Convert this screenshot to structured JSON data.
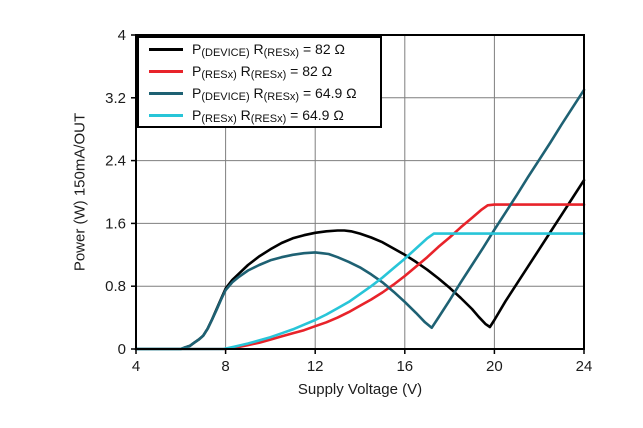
{
  "chart_data": {
    "type": "line",
    "title": "",
    "xlabel": "Supply Voltage (V)",
    "ylabel": "Power (W) 150mA/OUT",
    "xlim": [
      4,
      24
    ],
    "ylim": [
      0,
      4
    ],
    "xticks": [
      4,
      8,
      12,
      16,
      20,
      24
    ],
    "yticks": [
      0,
      0.8,
      1.6,
      2.4,
      3.2,
      4
    ],
    "xtick_labels": [
      "4",
      "8",
      "12",
      "16",
      "20",
      "24"
    ],
    "ytick_labels": [
      "0",
      "0.8",
      "1.6",
      "2.4",
      "3.2",
      "4"
    ],
    "grid": true,
    "grid_color": "#7f7f7f",
    "frame_color": "#000000",
    "text_color": "#1c1c1c",
    "legend_position": "top-left",
    "series": [
      {
        "id": "p-device-82",
        "name": "P(DEVICE) R(RESx) = 82 Ω",
        "color": "#000000",
        "label_parts": [
          {
            "text": "P",
            "sub": false
          },
          {
            "text": "(DEVICE)",
            "sub": true
          },
          {
            "text": " R",
            "sub": false
          },
          {
            "text": "(RESx)",
            "sub": true
          },
          {
            "text": " = 82 Ω",
            "sub": false
          }
        ],
        "points": [
          [
            4,
            0
          ],
          [
            6,
            0
          ],
          [
            6.2,
            0.02
          ],
          [
            6.4,
            0.04
          ],
          [
            6.6,
            0.08
          ],
          [
            6.8,
            0.12
          ],
          [
            7,
            0.17
          ],
          [
            7.2,
            0.26
          ],
          [
            7.4,
            0.38
          ],
          [
            7.6,
            0.51
          ],
          [
            7.8,
            0.64
          ],
          [
            8,
            0.77
          ],
          [
            8.3,
            0.88
          ],
          [
            8.6,
            0.96
          ],
          [
            9,
            1.07
          ],
          [
            9.5,
            1.18
          ],
          [
            10,
            1.27
          ],
          [
            10.5,
            1.35
          ],
          [
            11,
            1.41
          ],
          [
            11.5,
            1.45
          ],
          [
            12,
            1.48
          ],
          [
            12.5,
            1.5
          ],
          [
            13,
            1.51
          ],
          [
            13.3,
            1.51
          ],
          [
            13.6,
            1.5
          ],
          [
            14,
            1.47
          ],
          [
            14.5,
            1.42
          ],
          [
            15,
            1.36
          ],
          [
            15.5,
            1.28
          ],
          [
            16,
            1.2
          ],
          [
            16.5,
            1.11
          ],
          [
            17,
            1.01
          ],
          [
            17.5,
            0.9
          ],
          [
            18,
            0.78
          ],
          [
            18.5,
            0.65
          ],
          [
            19,
            0.51
          ],
          [
            19.3,
            0.41
          ],
          [
            19.6,
            0.32
          ],
          [
            19.8,
            0.28
          ],
          [
            20,
            0.37
          ],
          [
            20.5,
            0.61
          ],
          [
            21,
            0.83
          ],
          [
            21.5,
            1.05
          ],
          [
            22,
            1.27
          ],
          [
            22.5,
            1.49
          ],
          [
            23,
            1.71
          ],
          [
            23.5,
            1.93
          ],
          [
            24,
            2.15
          ]
        ]
      },
      {
        "id": "p-resx-82",
        "name": "P(RESx) R(RESx) = 82 Ω",
        "color": "#e8232a",
        "label_parts": [
          {
            "text": "P",
            "sub": false
          },
          {
            "text": "(RESx)",
            "sub": true
          },
          {
            "text": " R",
            "sub": false
          },
          {
            "text": "(RESx)",
            "sub": true
          },
          {
            "text": " = 82 Ω",
            "sub": false
          }
        ],
        "points": [
          [
            4,
            0
          ],
          [
            8,
            0
          ],
          [
            8.5,
            0.02
          ],
          [
            9,
            0.05
          ],
          [
            9.5,
            0.08
          ],
          [
            10,
            0.12
          ],
          [
            10.5,
            0.16
          ],
          [
            11,
            0.2
          ],
          [
            11.5,
            0.24
          ],
          [
            12,
            0.29
          ],
          [
            12.5,
            0.34
          ],
          [
            13,
            0.4
          ],
          [
            13.5,
            0.47
          ],
          [
            14,
            0.55
          ],
          [
            14.5,
            0.63
          ],
          [
            15,
            0.72
          ],
          [
            15.5,
            0.82
          ],
          [
            16,
            0.93
          ],
          [
            16.5,
            1.05
          ],
          [
            17,
            1.17
          ],
          [
            17.5,
            1.3
          ],
          [
            18,
            1.42
          ],
          [
            18.5,
            1.55
          ],
          [
            19,
            1.67
          ],
          [
            19.4,
            1.77
          ],
          [
            19.7,
            1.83
          ],
          [
            20,
            1.84
          ],
          [
            24,
            1.84
          ]
        ]
      },
      {
        "id": "p-device-64-9",
        "name": "P(DEVICE) R(RESx) = 64.9 Ω",
        "color": "#1e6173",
        "label_parts": [
          {
            "text": "P",
            "sub": false
          },
          {
            "text": "(DEVICE)",
            "sub": true
          },
          {
            "text": " R",
            "sub": false
          },
          {
            "text": "(RESx)",
            "sub": true
          },
          {
            "text": " = 64.9 Ω",
            "sub": false
          }
        ],
        "points": [
          [
            4,
            0
          ],
          [
            6,
            0
          ],
          [
            6.2,
            0.02
          ],
          [
            6.4,
            0.04
          ],
          [
            6.6,
            0.08
          ],
          [
            6.8,
            0.12
          ],
          [
            7,
            0.17
          ],
          [
            7.2,
            0.26
          ],
          [
            7.4,
            0.38
          ],
          [
            7.6,
            0.5
          ],
          [
            7.8,
            0.63
          ],
          [
            8,
            0.75
          ],
          [
            8.3,
            0.85
          ],
          [
            8.6,
            0.92
          ],
          [
            9,
            1
          ],
          [
            9.5,
            1.07
          ],
          [
            10,
            1.13
          ],
          [
            10.5,
            1.17
          ],
          [
            11,
            1.2
          ],
          [
            11.5,
            1.22
          ],
          [
            12,
            1.23
          ],
          [
            12.3,
            1.22
          ],
          [
            12.6,
            1.21
          ],
          [
            13,
            1.17
          ],
          [
            13.5,
            1.11
          ],
          [
            14,
            1.04
          ],
          [
            14.5,
            0.95
          ],
          [
            15,
            0.85
          ],
          [
            15.5,
            0.73
          ],
          [
            16,
            0.6
          ],
          [
            16.5,
            0.46
          ],
          [
            16.9,
            0.34
          ],
          [
            17.2,
            0.27
          ],
          [
            17.5,
            0.4
          ],
          [
            18,
            0.62
          ],
          [
            18.5,
            0.85
          ],
          [
            19,
            1.07
          ],
          [
            19.5,
            1.29
          ],
          [
            20,
            1.52
          ],
          [
            20.5,
            1.74
          ],
          [
            21,
            1.96
          ],
          [
            21.5,
            2.19
          ],
          [
            22,
            2.41
          ],
          [
            22.5,
            2.63
          ],
          [
            23,
            2.86
          ],
          [
            23.5,
            3.08
          ],
          [
            24,
            3.3
          ]
        ]
      },
      {
        "id": "p-resx-64-9",
        "name": "P(RESx) R(RESx) = 64.9 Ω",
        "color": "#28c5d8",
        "label_parts": [
          {
            "text": "P",
            "sub": false
          },
          {
            "text": "(RESx)",
            "sub": true
          },
          {
            "text": " R",
            "sub": false
          },
          {
            "text": "(RESx)",
            "sub": true
          },
          {
            "text": " = 64.9 Ω",
            "sub": false
          }
        ],
        "points": [
          [
            4,
            0
          ],
          [
            7.9,
            0
          ],
          [
            8.4,
            0.03
          ],
          [
            9,
            0.07
          ],
          [
            9.5,
            0.11
          ],
          [
            10,
            0.15
          ],
          [
            10.5,
            0.2
          ],
          [
            11,
            0.25
          ],
          [
            11.5,
            0.31
          ],
          [
            12,
            0.37
          ],
          [
            12.5,
            0.44
          ],
          [
            13,
            0.52
          ],
          [
            13.5,
            0.6
          ],
          [
            14,
            0.7
          ],
          [
            14.5,
            0.8
          ],
          [
            15,
            0.91
          ],
          [
            15.5,
            1.03
          ],
          [
            16,
            1.15
          ],
          [
            16.5,
            1.28
          ],
          [
            17,
            1.41
          ],
          [
            17.3,
            1.47
          ],
          [
            18,
            1.47
          ],
          [
            24,
            1.47
          ]
        ]
      }
    ]
  }
}
